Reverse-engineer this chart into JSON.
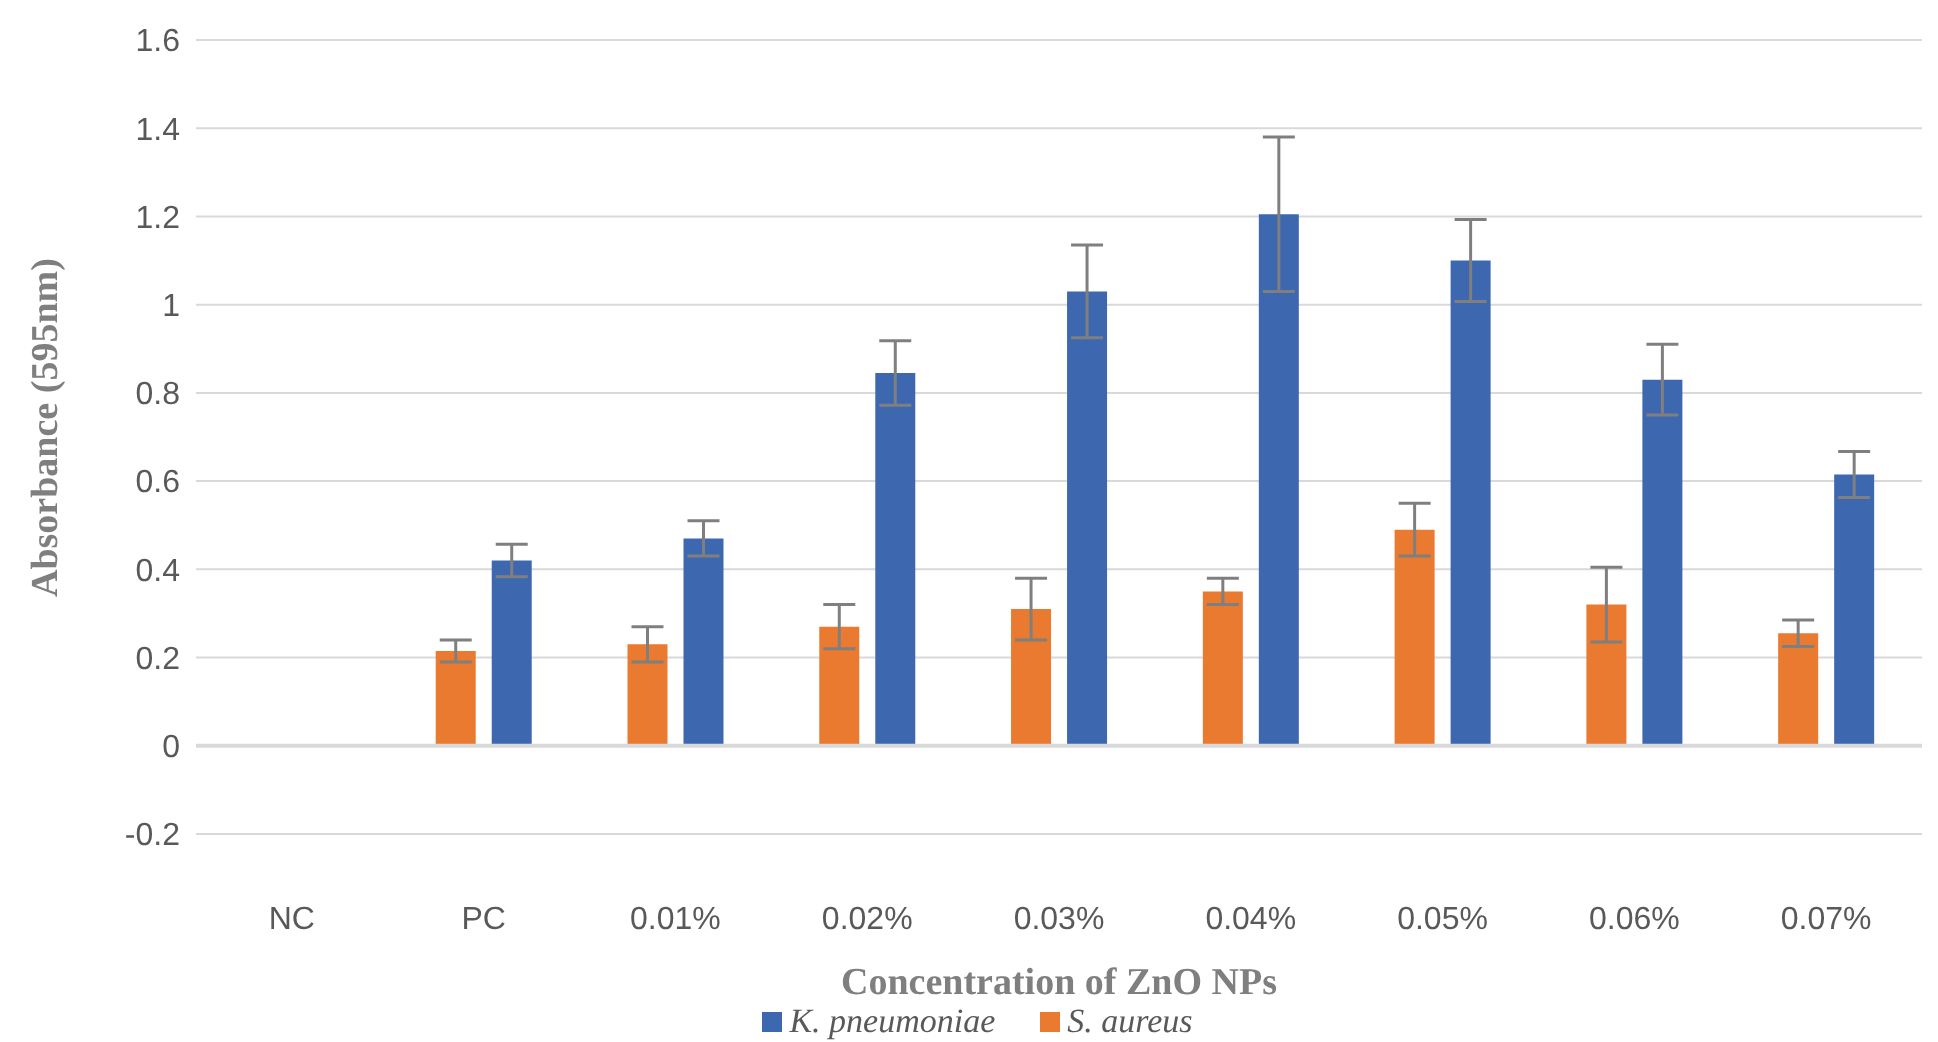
{
  "chart_data": {
    "type": "bar",
    "xlabel": "Concentration of ZnO NPs",
    "ylabel": "Absorbance (595nm)",
    "categories": [
      "NC",
      "PC",
      "0.01%",
      "0.02%",
      "0.03%",
      "0.04%",
      "0.05%",
      "0.06%",
      "0.07%"
    ],
    "series": [
      {
        "name": "S. aureus",
        "color": "#e97a2f",
        "values": [
          0,
          0.215,
          0.23,
          0.27,
          0.31,
          0.35,
          0.49,
          0.32,
          0.255
        ],
        "errors": [
          null,
          0.025,
          0.04,
          0.05,
          0.07,
          0.03,
          0.06,
          0.085,
          0.03
        ]
      },
      {
        "name": "K. pneumoniae",
        "color": "#3d68b0",
        "values": [
          0,
          0.42,
          0.47,
          0.845,
          1.03,
          1.205,
          1.1,
          0.83,
          0.615
        ],
        "errors": [
          null,
          0.037,
          0.04,
          0.073,
          0.105,
          0.175,
          0.093,
          0.08,
          0.052
        ]
      }
    ],
    "ylim": [
      -0.2,
      1.6
    ],
    "yticks": [
      -0.2,
      0,
      0.2,
      0.4,
      0.6,
      0.8,
      1,
      1.2,
      1.4,
      1.6
    ],
    "grid": "y",
    "legend": "bottom"
  }
}
